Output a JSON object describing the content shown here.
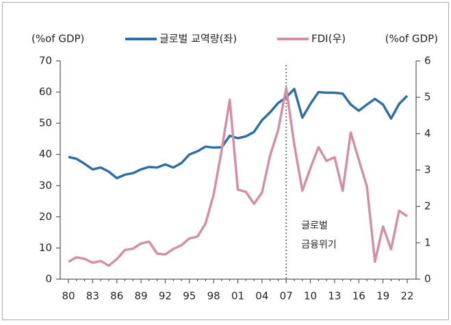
{
  "chart_data": {
    "type": "line",
    "y_label": "(%of GDP)",
    "y2_label": "(%of GDP)",
    "categories": [
      "80",
      null,
      null,
      "83",
      null,
      null,
      "86",
      null,
      null,
      "89",
      null,
      null,
      "92",
      null,
      null,
      "95",
      null,
      null,
      "98",
      null,
      null,
      "01",
      null,
      null,
      "04",
      null,
      null,
      "07",
      null,
      null,
      "10",
      null,
      null,
      "13",
      null,
      null,
      "16",
      null,
      null,
      "19",
      null,
      null,
      "22"
    ],
    "series": [
      {
        "name": "글로벌 교역량(좌)",
        "color": "#2f6ea5",
        "axis": "y",
        "values": [
          39.2,
          38.6,
          37,
          35.2,
          35.8,
          34.5,
          32.4,
          33.5,
          34,
          35.2,
          36,
          35.8,
          36.8,
          35.8,
          37.2,
          40,
          41,
          42.5,
          42.2,
          42.3,
          46,
          45.2,
          45.8,
          47.2,
          51,
          53.5,
          56.5,
          58.3,
          61,
          51.8,
          56.2,
          60,
          59.8,
          59.8,
          59.5,
          56,
          54,
          56,
          57.8,
          56,
          51.5,
          56.2,
          58.8
        ]
      },
      {
        "name": "FDI(우)",
        "color": "#d48fa6",
        "axis": "y2",
        "values": [
          0.48,
          0.6,
          0.56,
          0.45,
          0.5,
          0.37,
          0.55,
          0.8,
          0.84,
          0.98,
          1.03,
          0.7,
          0.68,
          0.83,
          0.93,
          1.12,
          1.17,
          1.53,
          2.32,
          3.55,
          4.93,
          2.46,
          2.4,
          2.07,
          2.38,
          3.4,
          4.1,
          5.25,
          3.7,
          2.43,
          3.05,
          3.63,
          3.25,
          3.35,
          2.43,
          4.03,
          3.28,
          2.55,
          0.48,
          1.45,
          0.82,
          1.88,
          1.73
        ]
      }
    ],
    "ylim": [
      0,
      70
    ],
    "yticks": [
      0,
      10,
      20,
      30,
      40,
      50,
      60,
      70
    ],
    "y2lim": [
      0,
      6
    ],
    "y2ticks": [
      0,
      1,
      2,
      3,
      4,
      5,
      6
    ],
    "annotation": {
      "lines": [
        "글로벌",
        "금융위기"
      ],
      "x": "07"
    }
  }
}
